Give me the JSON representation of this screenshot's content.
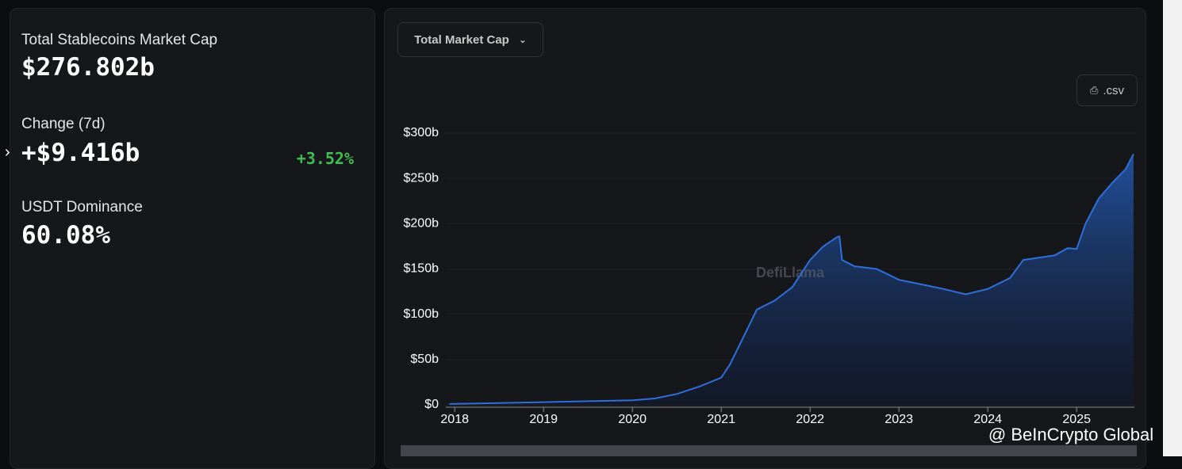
{
  "stats": {
    "market_cap": {
      "label": "Total Stablecoins Market Cap",
      "value": "$276.802b"
    },
    "change": {
      "label": "Change (7d)",
      "value": "+$9.416b",
      "percent": "+3.52%"
    },
    "dominance": {
      "label": "USDT Dominance",
      "value": "60.08%"
    }
  },
  "dropdown": "Total Market Cap",
  "csv_button": ".csv",
  "chart_watermark": "DefiLlama",
  "site_watermark": "@ BeInCrypto Global",
  "chart_data": {
    "type": "area",
    "color": "#2f6fd9",
    "x": [
      2017.94,
      2018.5,
      2019.0,
      2019.5,
      2020.0,
      2020.25,
      2020.5,
      2020.75,
      2021.0,
      2021.1,
      2021.25,
      2021.4,
      2021.6,
      2021.8,
      2022.0,
      2022.15,
      2022.3,
      2022.33,
      2022.36,
      2022.5,
      2022.75,
      2023.0,
      2023.25,
      2023.5,
      2023.75,
      2024.0,
      2024.25,
      2024.4,
      2024.75,
      2024.9,
      2025.0,
      2025.1,
      2025.25,
      2025.4,
      2025.55,
      2025.64
    ],
    "values": [
      1,
      2,
      3,
      4,
      5,
      7,
      12,
      20,
      30,
      45,
      75,
      105,
      115,
      130,
      160,
      175,
      185,
      186,
      160,
      153,
      150,
      138,
      133,
      128,
      122,
      128,
      140,
      160,
      165,
      173,
      172,
      200,
      228,
      245,
      260,
      276.8
    ],
    "xlim": [
      2017.9,
      2025.65
    ],
    "xticks": [
      2018,
      2019,
      2020,
      2021,
      2022,
      2023,
      2024,
      2025
    ],
    "ylim": [
      0,
      300
    ],
    "yticks": [
      {
        "value": 0,
        "label": "$0"
      },
      {
        "value": 50,
        "label": "$50b"
      },
      {
        "value": 100,
        "label": "$100b"
      },
      {
        "value": 150,
        "label": "$150b"
      },
      {
        "value": 200,
        "label": "$200b"
      },
      {
        "value": 250,
        "label": "$250b"
      },
      {
        "value": 300,
        "label": "$300b"
      }
    ]
  }
}
